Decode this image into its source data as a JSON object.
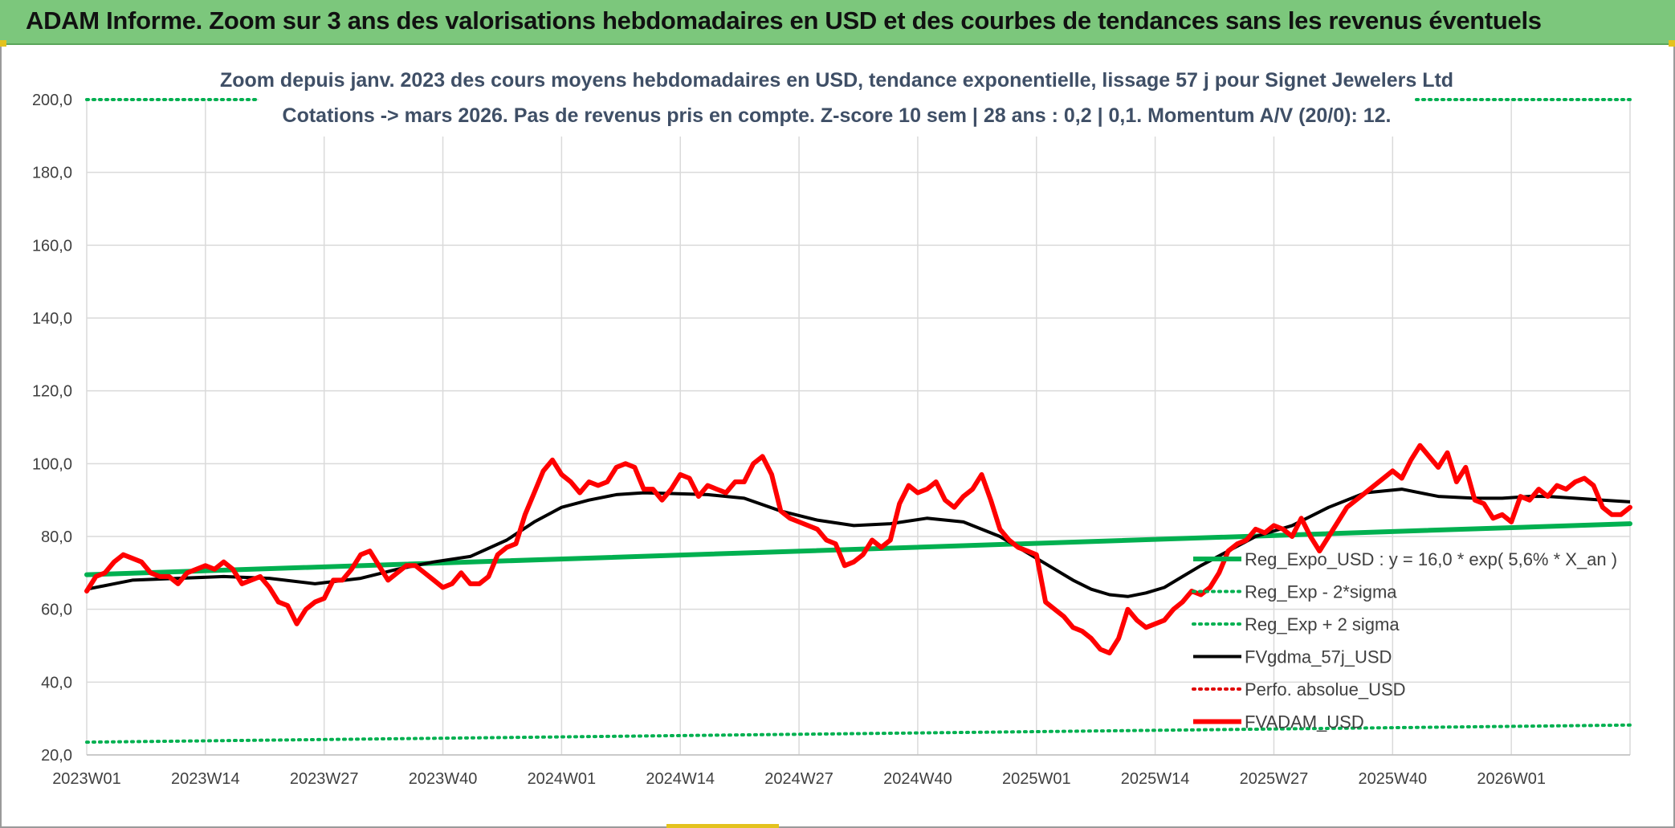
{
  "banner": {
    "title": "ADAM Informe. Zoom sur 3 ans des valorisations hebdomadaires en USD et des courbes de tendances sans les revenus éventuels"
  },
  "chart_data": {
    "type": "line",
    "title_line1": "Zoom depuis janv. 2023 des cours moyens hebdomadaires en USD, tendance exponentielle, lissage 57 j pour Signet Jewelers Ltd",
    "title_line2": "Cotations -> mars 2026. Pas de revenus pris en compte. Z-score 10 sem | 28 ans : 0,2 | 0,1. Momentum A/V (20/0): 12.",
    "xlabel": "",
    "ylabel": "",
    "ylim": [
      20,
      200
    ],
    "yticks": [
      "20,0",
      "40,0",
      "60,0",
      "80,0",
      "100,0",
      "120,0",
      "140,0",
      "160,0",
      "180,0",
      "200,0"
    ],
    "x_range_weeks": [
      0,
      169
    ],
    "xticks": [
      "2023W01",
      "2023W14",
      "2023W27",
      "2023W40",
      "2024W01",
      "2024W14",
      "2024W27",
      "2024W40",
      "2025W01",
      "2025W14",
      "2025W27",
      "2025W40",
      "2026W01"
    ],
    "grid": true,
    "legend_position": "bottom-right",
    "series": [
      {
        "name": "Reg_Expo_USD : y = 16,0 * exp( 5,6% *  X_an )",
        "style": "solid-thick",
        "color": "#00b050",
        "x": [
          0,
          169
        ],
        "values": [
          69.5,
          83.5
        ]
      },
      {
        "name": "Reg_Exp - 2*sigma",
        "style": "dotted",
        "color": "#00b050",
        "x": [
          0,
          169
        ],
        "values": [
          23.5,
          28.2
        ]
      },
      {
        "name": "Reg_Exp + 2 sigma",
        "style": "dotted",
        "color": "#00b050",
        "x": [
          0,
          169
        ],
        "values": [
          200,
          200
        ]
      },
      {
        "name": "FVgdma_57j_USD",
        "style": "solid",
        "color": "#000000",
        "x": [
          0,
          3,
          5,
          10,
          15,
          20,
          25,
          30,
          34,
          38,
          42,
          46,
          49,
          52,
          55,
          58,
          61,
          64,
          68,
          72,
          76,
          80,
          84,
          88,
          92,
          96,
          100,
          104,
          108,
          110,
          112,
          114,
          116,
          118,
          120,
          122,
          125,
          128,
          132,
          136,
          140,
          144,
          148,
          152,
          155,
          158,
          160,
          163,
          166,
          169
        ],
        "values": [
          65.5,
          67,
          68,
          68.5,
          69,
          68.5,
          67,
          68.5,
          71,
          73,
          74.5,
          79,
          84,
          88,
          90,
          91.5,
          92,
          91.8,
          91.5,
          90.5,
          87,
          84.5,
          83,
          83.5,
          85,
          84,
          80,
          74,
          68,
          65.5,
          64,
          63.5,
          64.5,
          66,
          69,
          72,
          76,
          80,
          83,
          88,
          92,
          93,
          91,
          90.5,
          90.5,
          91,
          91,
          90.5,
          90,
          89.5
        ]
      },
      {
        "name": "Perfo. absolue_USD",
        "style": "dotted",
        "color": "#e00000",
        "x": [],
        "values": []
      },
      {
        "name": "FVADAM_USD",
        "style": "solid-thick",
        "color": "#ff0000",
        "x": [
          0,
          1,
          2,
          3,
          4,
          5,
          6,
          7,
          8,
          9,
          10,
          11,
          12,
          13,
          14,
          15,
          16,
          17,
          18,
          19,
          20,
          21,
          22,
          23,
          24,
          25,
          26,
          27,
          28,
          29,
          30,
          31,
          32,
          33,
          34,
          35,
          36,
          37,
          38,
          39,
          40,
          41,
          42,
          43,
          44,
          45,
          46,
          47,
          48,
          49,
          50,
          51,
          52,
          53,
          54,
          55,
          56,
          57,
          58,
          59,
          60,
          61,
          62,
          63,
          64,
          65,
          66,
          67,
          68,
          69,
          70,
          71,
          72,
          73,
          74,
          75,
          76,
          77,
          78,
          79,
          80,
          81,
          82,
          83,
          84,
          85,
          86,
          87,
          88,
          89,
          90,
          91,
          92,
          93,
          94,
          95,
          96,
          97,
          98,
          99,
          100,
          101,
          102,
          103,
          104,
          105,
          106,
          107,
          108,
          109,
          110,
          111,
          112,
          113,
          114,
          115,
          116,
          117,
          118,
          119,
          120,
          121,
          122,
          123,
          124,
          125,
          126,
          127,
          128,
          129,
          130,
          131,
          132,
          133,
          134,
          135,
          136,
          137,
          138,
          139,
          140,
          141,
          142,
          143,
          144,
          145,
          146,
          147,
          148,
          149,
          150,
          151,
          152,
          153,
          154,
          155,
          156,
          157,
          158,
          159,
          160,
          161,
          162,
          163,
          164,
          165,
          166,
          167,
          168,
          169
        ],
        "values": [
          65,
          69,
          70,
          73,
          75,
          74,
          73,
          70,
          69,
          69,
          67,
          70,
          71,
          72,
          71,
          73,
          71,
          67,
          68,
          69,
          66,
          62,
          61,
          56,
          60,
          62,
          63,
          68,
          68,
          71,
          75,
          76,
          72,
          68,
          70,
          72,
          72,
          70,
          68,
          66,
          67,
          70,
          67,
          67,
          69,
          75,
          77,
          78,
          86,
          92,
          98,
          101,
          97,
          95,
          92,
          95,
          94,
          95,
          99,
          100,
          99,
          93,
          93,
          90,
          93,
          97,
          96,
          91,
          94,
          93,
          92,
          95,
          95,
          100,
          102,
          97,
          87,
          85,
          84,
          83,
          82,
          79,
          78,
          72,
          73,
          75,
          79,
          77,
          79,
          89,
          94,
          92,
          93,
          95,
          90,
          88,
          91,
          93,
          97,
          90,
          82,
          79,
          77,
          76,
          75,
          62,
          60,
          58,
          55,
          54,
          52,
          49,
          48,
          52,
          60,
          57,
          55,
          56,
          57,
          60,
          62,
          65,
          64,
          66,
          70,
          76,
          78,
          79,
          82,
          81,
          83,
          82,
          80,
          85,
          80,
          76,
          80,
          84,
          88,
          90,
          92,
          94,
          96,
          98,
          96,
          101,
          105,
          102,
          99,
          103,
          95,
          99,
          90,
          89,
          85,
          86,
          84,
          91,
          90,
          93,
          91,
          94,
          93,
          95,
          96,
          94,
          88,
          86,
          86,
          88
        ]
      }
    ]
  }
}
